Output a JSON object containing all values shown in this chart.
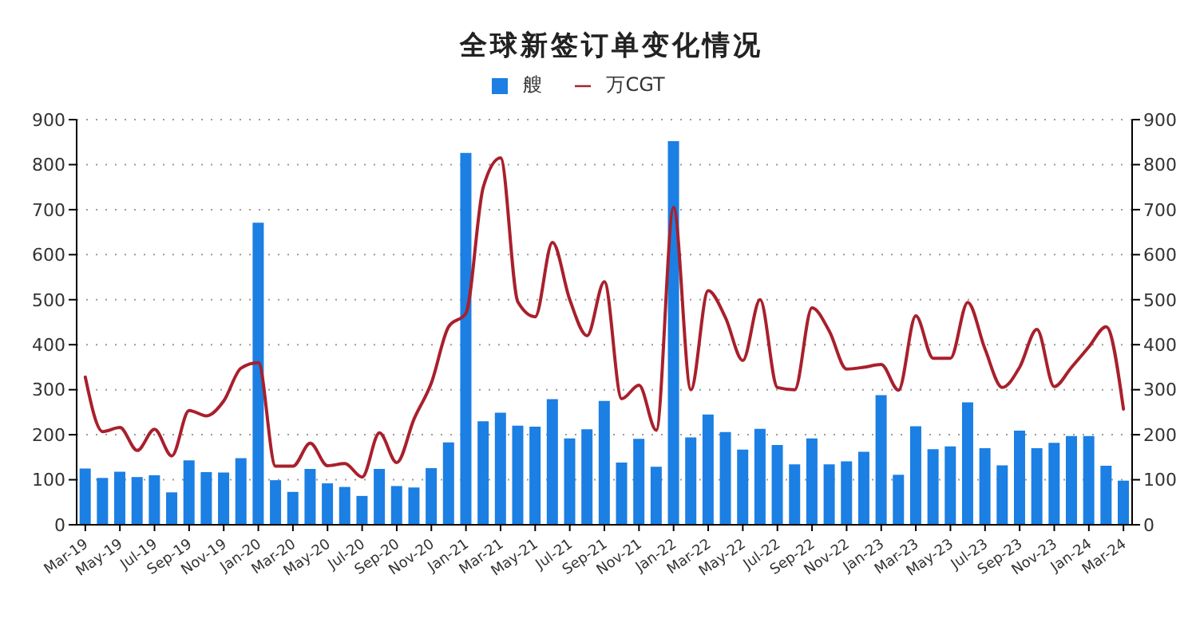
{
  "chart_data": {
    "type": "bar",
    "title": "全球新签订单变化情况",
    "categories": [
      "Mar-19",
      null,
      "May-19",
      null,
      "Jul-19",
      null,
      "Sep-19",
      null,
      "Nov-19",
      null,
      "Jan-20",
      null,
      "Mar-20",
      null,
      "May-20",
      null,
      "Jul-20",
      null,
      "Sep-20",
      null,
      "Nov-20",
      null,
      "Jan-21",
      null,
      "Mar-21",
      null,
      "May-21",
      null,
      "Jul-21",
      null,
      "Sep-21",
      null,
      "Nov-21",
      null,
      "Jan-22",
      null,
      "Mar-22",
      null,
      "May-22",
      null,
      "Jul-22",
      null,
      "Sep-22",
      null,
      "Nov-22",
      null,
      "Jan-23",
      null,
      "Mar-23",
      null,
      "May-23",
      null,
      "Jul-23",
      null,
      "Sep-23",
      null,
      "Nov-23",
      null,
      "Jan-24",
      null,
      "Mar-24"
    ],
    "series": [
      {
        "name": "艘",
        "color": "#1b7fe3",
        "values": [
          125,
          104,
          118,
          106,
          110,
          72,
          143,
          117,
          116,
          148,
          671,
          99,
          73,
          124,
          92,
          84,
          64,
          124,
          86,
          83,
          126,
          183,
          826,
          230,
          249,
          220,
          218,
          279,
          192,
          212,
          275,
          138,
          191,
          129,
          852,
          194,
          245,
          206,
          167,
          213,
          177,
          134,
          192,
          134,
          141,
          162,
          288,
          111,
          219,
          168,
          174,
          272,
          170,
          132,
          209,
          170,
          182,
          197,
          197,
          131,
          98
        ]
      },
      {
        "name": "万CGT",
        "type": "line",
        "color": "#a8202c",
        "axis": "y2",
        "values": [
          328,
          207,
          216,
          165,
          212,
          153,
          254,
          242,
          275,
          348,
          360,
          130,
          130,
          181,
          131,
          136,
          106,
          204,
          138,
          235,
          315,
          440,
          470,
          750,
          815,
          495,
          462,
          627,
          500,
          420,
          540,
          280,
          310,
          210,
          705,
          300,
          520,
          460,
          365,
          500,
          305,
          300,
          482,
          430,
          346,
          350,
          356,
          299,
          464,
          370,
          370,
          494,
          390,
          305,
          350,
          434,
          307,
          350,
          395,
          440,
          257
        ]
      }
    ],
    "ylim": [
      0,
      900
    ],
    "yticks": [
      0,
      100,
      200,
      300,
      400,
      500,
      600,
      700,
      800,
      900
    ],
    "y2lim": [
      0,
      900
    ],
    "y2ticks": [
      0,
      100,
      200,
      300,
      400,
      500,
      600,
      700,
      800,
      900
    ],
    "grid": "y",
    "legend": "top"
  }
}
